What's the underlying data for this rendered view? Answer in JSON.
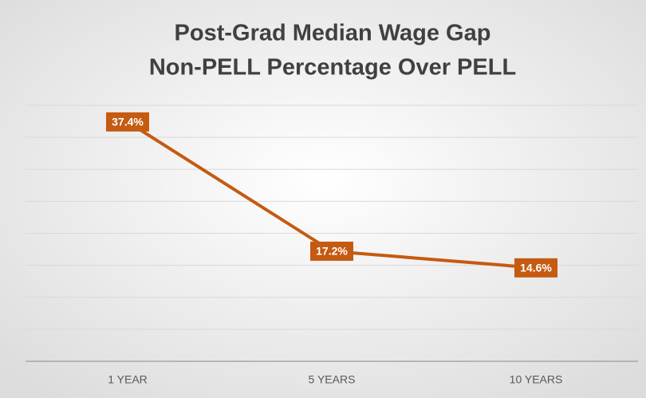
{
  "chart_data": {
    "type": "line",
    "title": [
      "Post-Grad Median Wage Gap",
      "Non-PELL Percentage Over PELL"
    ],
    "categories": [
      "1 YEAR",
      "5 YEARS",
      "10 YEARS"
    ],
    "series": [
      {
        "color": "#c55a11",
        "values": [
          37.4,
          17.2,
          14.6
        ],
        "value_labels": [
          "37.4%",
          "17.2%",
          "14.6%"
        ]
      }
    ],
    "ylim": [
      0,
      40
    ],
    "yticks": [
      0,
      5,
      10,
      15,
      20,
      25,
      30,
      35,
      40
    ],
    "grid": true
  }
}
